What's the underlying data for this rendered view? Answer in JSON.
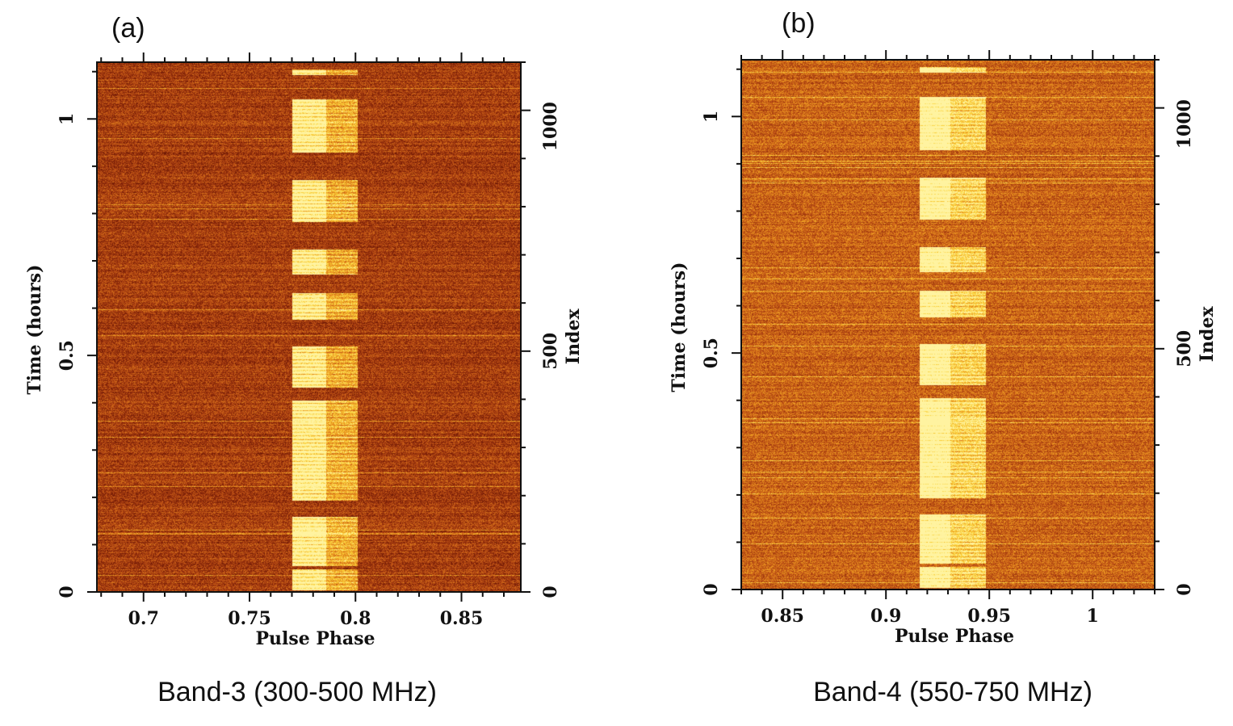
{
  "chart_data": [
    {
      "type": "heatmap",
      "panel_label": "(a)",
      "caption": "Band-3 (300-500 MHz)",
      "xlabel": "Pulse Phase",
      "ylabel": "Time (hours)",
      "y2label": "Index",
      "xlim": [
        0.678,
        0.878
      ],
      "ylim": [
        0,
        1.12
      ],
      "y2lim": [
        0,
        1100
      ],
      "xticks": [
        "0.7",
        "0.75",
        "0.8",
        "0.85"
      ],
      "xtick_values": [
        0.7,
        0.75,
        0.8,
        0.85
      ],
      "yticks": [
        "0",
        "0.5",
        "1"
      ],
      "ytick_values": [
        0,
        0.5,
        1
      ],
      "y2ticks": [
        "0",
        "500",
        "1000"
      ],
      "y2tick_values": [
        0,
        500,
        1000
      ],
      "on_pulse_phase": [
        0.77,
        0.801
      ],
      "bright_core_phase": [
        0.77,
        0.786
      ],
      "emission_intervals_hours": [
        [
          1.094,
          1.106
        ],
        [
          0.93,
          1.043
        ],
        [
          0.782,
          0.872
        ],
        [
          0.671,
          0.725
        ],
        [
          0.577,
          0.633
        ],
        [
          0.432,
          0.52
        ],
        [
          0.193,
          0.406
        ],
        [
          0.056,
          0.159
        ],
        [
          0.005,
          0.048
        ]
      ],
      "colormap": [
        "#5a0f02",
        "#8f2b0b",
        "#c25516",
        "#e8901f",
        "#fbd23a",
        "#fff3a0"
      ],
      "background_level": 0.3
    },
    {
      "type": "heatmap",
      "panel_label": "(b)",
      "caption": "Band-4 (550-750 MHz)",
      "xlabel": "Pulse Phase",
      "ylabel": "Time (hours)",
      "y2label": "Index",
      "xlim": [
        0.83,
        1.03
      ],
      "ylim": [
        0,
        1.12
      ],
      "y2lim": [
        0,
        1100
      ],
      "xticks": [
        "0.85",
        "0.9",
        "0.95",
        "1"
      ],
      "xtick_values": [
        0.85,
        0.9,
        0.95,
        1
      ],
      "yticks": [
        "0",
        "0.5",
        "1"
      ],
      "ytick_values": [
        0,
        0.5,
        1
      ],
      "y2ticks": [
        "0",
        "500",
        "1000"
      ],
      "y2tick_values": [
        0,
        500,
        1000
      ],
      "on_pulse_phase": [
        0.915,
        0.948
      ],
      "bright_core_phase": [
        0.916,
        0.931
      ],
      "emission_intervals_hours": [
        [
          1.094,
          1.106
        ],
        [
          0.93,
          1.043
        ],
        [
          0.782,
          0.872
        ],
        [
          0.671,
          0.725
        ],
        [
          0.577,
          0.633
        ],
        [
          0.432,
          0.52
        ],
        [
          0.193,
          0.406
        ],
        [
          0.056,
          0.159
        ],
        [
          0.005,
          0.048
        ]
      ],
      "colormap": [
        "#5a0f02",
        "#8f2b0b",
        "#c25516",
        "#e8901f",
        "#fbd23a",
        "#fff3a0"
      ],
      "background_level": 0.45
    }
  ]
}
